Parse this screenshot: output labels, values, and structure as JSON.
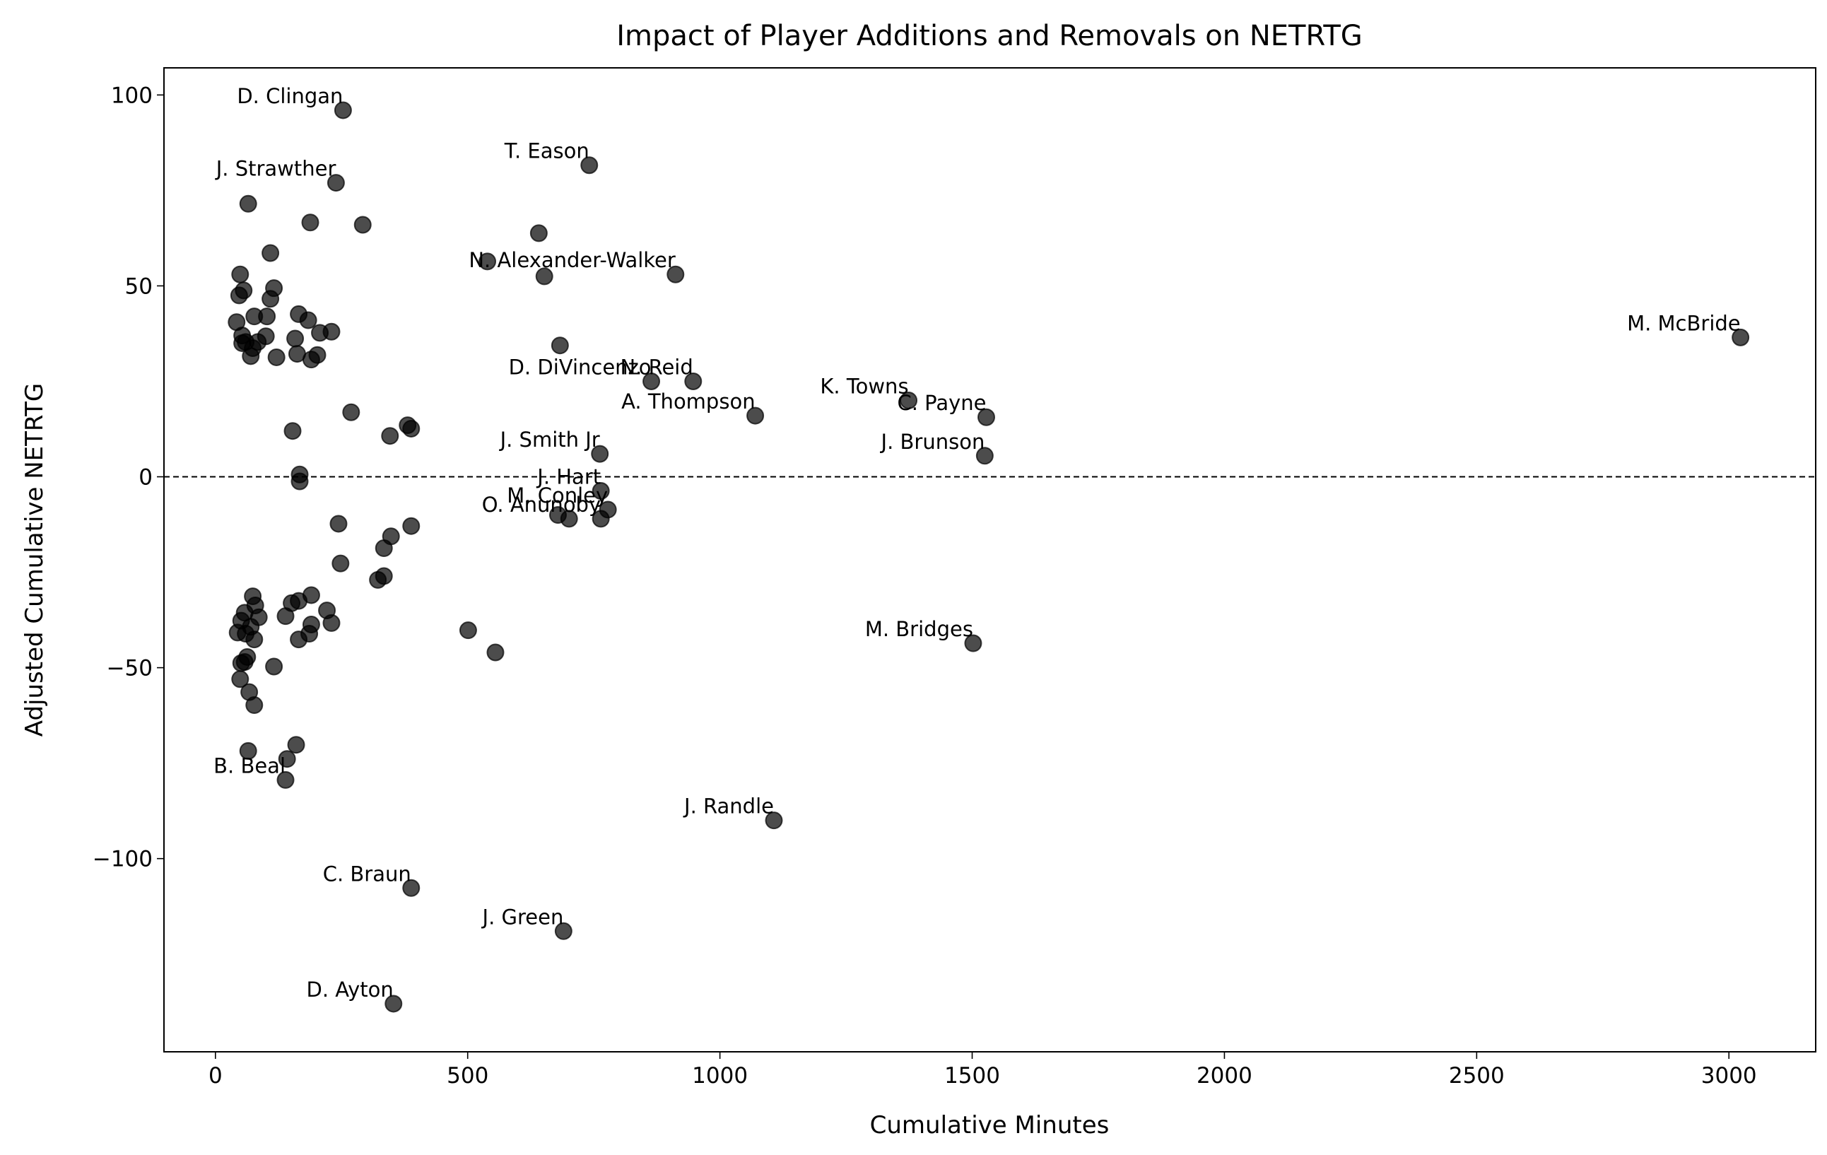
{
  "chart_data": {
    "type": "scatter",
    "title": "Impact of Player Additions and Removals on NETRTG",
    "x_label": "Cumulative Minutes",
    "y_label": "Adjusted Cumulative NETRTG",
    "xlim": [
      -102,
      3172
    ],
    "ylim": [
      -150.6,
      107.1
    ],
    "xticks": [
      0,
      500,
      1000,
      1500,
      2000,
      2500,
      3000
    ],
    "yticks": [
      {
        "value": -100,
        "label": "−100"
      },
      {
        "value": -50,
        "label": "−50"
      },
      0,
      50,
      100
    ],
    "hline": 0,
    "color": "#000000",
    "alpha": 0.7,
    "x": [
      253,
      741,
      239,
      912,
      3023,
      864,
      947,
      1070,
      1374,
      1528,
      762,
      1525,
      764,
      778,
      764,
      1502,
      1107,
      139,
      388,
      690,
      353,
      65,
      188,
      292,
      641,
      109,
      49,
      539,
      652,
      56,
      116,
      47,
      109,
      165,
      77,
      102,
      184,
      42,
      230,
      207,
      53,
      100,
      158,
      60,
      84,
      683,
      53,
      74,
      162,
      121,
      70,
      202,
      190,
      269,
      381,
      388,
      153,
      346,
      167,
      167,
      244,
      388,
      679,
      701,
      348,
      334,
      248,
      334,
      322,
      74,
      190,
      79,
      165,
      151,
      221,
      58,
      86,
      139,
      51,
      190,
      230,
      70,
      44,
      186,
      60,
      77,
      165,
      501,
      555,
      63,
      58,
      116,
      51,
      49,
      67,
      77,
      160,
      65,
      142
    ],
    "y": [
      96,
      81.6,
      77,
      53,
      36.5,
      25,
      25,
      16,
      20,
      15.6,
      6,
      5.5,
      -3.7,
      -8.6,
      -11,
      -43.6,
      -90,
      -79.4,
      -107.7,
      -119,
      -138,
      71.5,
      66.6,
      66,
      63.8,
      58.6,
      53,
      56.4,
      52.5,
      48.8,
      49.4,
      47.5,
      46.6,
      42.6,
      42,
      42,
      41,
      40.5,
      38,
      37.7,
      37,
      36.8,
      36.2,
      35.3,
      35.3,
      34.4,
      35,
      33.7,
      32.2,
      31.3,
      31.6,
      31.9,
      30.7,
      16.9,
      13.5,
      12.6,
      12,
      10.7,
      0.6,
      -1.2,
      -12.3,
      -12.9,
      -10,
      -11,
      -15.6,
      -18.7,
      -22.7,
      -26,
      -27,
      -31.3,
      -31,
      -33.7,
      -32.5,
      -33.1,
      -35,
      -35.6,
      -36.8,
      -36.5,
      -37.7,
      -38.7,
      -38.3,
      -39.3,
      -40.8,
      -41.1,
      -41.1,
      -42.6,
      -42.6,
      -40.2,
      -46,
      -47.2,
      -48.5,
      -49.7,
      -48.8,
      -53,
      -56.4,
      -59.8,
      -70.2,
      -71.8,
      -73.9
    ],
    "labels": [
      "D. Clingan",
      "T. Eason",
      "J. Strawther",
      "N. Alexander-Walker",
      "M. McBride",
      "D. DiVincenzo",
      "N. Reid",
      "A. Thompson",
      "K. Towns",
      "C. Payne",
      "J. Smith Jr",
      "J. Brunson",
      "J. Hart",
      "M. Conley",
      "O. Anunoby",
      "M. Bridges",
      "J. Randle",
      "B. Beal",
      "C. Braun",
      "J. Green",
      "D. Ayton",
      null,
      null,
      null,
      null,
      null,
      null,
      null,
      null,
      null,
      null,
      null,
      null,
      null,
      null,
      null,
      null,
      null,
      null,
      null,
      null,
      null,
      null,
      null,
      null,
      null,
      null,
      null,
      null,
      null,
      null,
      null,
      null,
      null,
      null,
      null,
      null,
      null,
      null,
      null,
      null,
      null,
      null,
      null,
      null,
      null,
      null,
      null,
      null,
      null,
      null,
      null,
      null,
      null,
      null,
      null,
      null,
      null,
      null,
      null,
      null,
      null,
      null,
      null,
      null,
      null,
      null,
      null,
      null,
      null,
      null,
      null,
      null,
      null,
      null,
      null,
      null,
      null,
      null
    ]
  }
}
